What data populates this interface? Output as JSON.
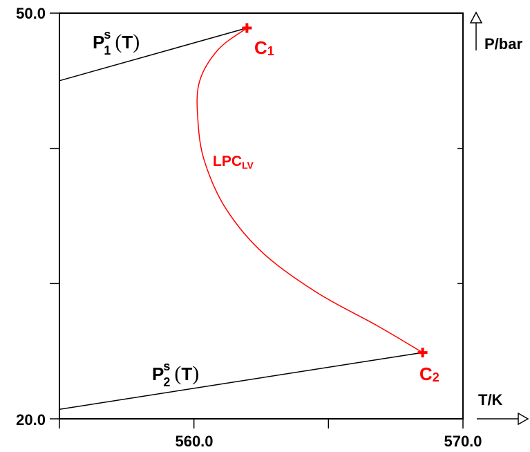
{
  "chart_data": {
    "type": "line",
    "xlabel": "T/K",
    "ylabel": "P/bar",
    "xlim": [
      555.0,
      570.0
    ],
    "ylim": [
      20.0,
      50.0
    ],
    "x_tick_labels": [
      "560.0",
      "570.0"
    ],
    "y_tick_labels": [
      "20.0",
      "50.0"
    ],
    "x_minor_ticks": [
      555.0,
      560.0,
      565.0,
      570.0
    ],
    "y_minor_ticks": [
      20.0,
      30.0,
      40.0,
      50.0
    ],
    "grid": false,
    "colors": {
      "vapor_pressure": "#000000",
      "critical_line": "#ff0000"
    },
    "series": [
      {
        "key": "p1",
        "label_main": "P",
        "label_sub": "1",
        "label_sup": "s",
        "label_arg": "T",
        "label_open": "(",
        "label_close": ")",
        "x": [
          555.0,
          561.97
        ],
        "y": [
          45.0,
          48.9
        ]
      },
      {
        "key": "p2",
        "label_main": "P",
        "label_sub": "2",
        "label_sup": "s",
        "label_arg": "T",
        "label_open": "(",
        "label_close": ")",
        "x": [
          555.0,
          568.5
        ],
        "y": [
          20.7,
          24.9
        ]
      },
      {
        "key": "lpc",
        "label_main": "LPC",
        "label_sub": "LV",
        "x": [
          561.97,
          560.9,
          560.2,
          560.15,
          560.4,
          561.2,
          562.6,
          564.6,
          566.8,
          568.5
        ],
        "y": [
          48.9,
          47.3,
          44.9,
          42.0,
          39.0,
          35.5,
          32.2,
          29.3,
          26.9,
          24.9
        ]
      }
    ],
    "points": [
      {
        "key": "c1",
        "label_main": "C",
        "label_sub": "1",
        "x": 561.97,
        "y": 48.9
      },
      {
        "key": "c2",
        "label_main": "C",
        "label_sub": "2",
        "x": 568.5,
        "y": 24.9
      }
    ]
  }
}
